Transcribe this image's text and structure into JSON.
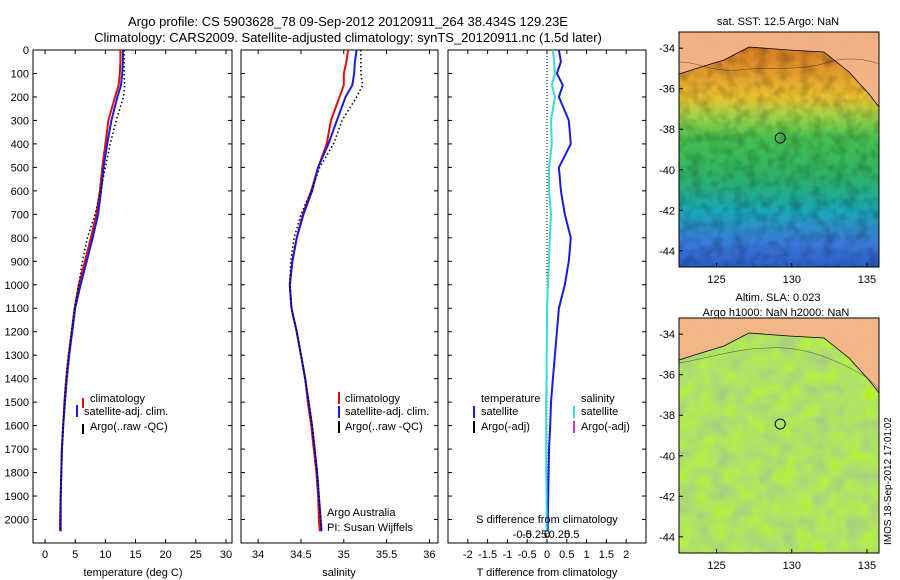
{
  "header": {
    "title_line1": "Argo profile: CS 5903628_78 09-Sep-2012 20120911_264 38.434S 129.23E",
    "title_line2": "Climatology: CARS2009. Satellite-adjusted climatology: synTS_20120911.nc (1.5d later)"
  },
  "footer_stamp": "IMOS 18-Sep-2012 17:01:02",
  "colors": {
    "climatology": "#dd1111",
    "satellite": "#1a1adf",
    "satellite_diff_s": "#33dddd",
    "argo": "#000000",
    "argo_adj_s": "#cc33cc",
    "land": "#f4b48a"
  },
  "chart_data": [
    {
      "type": "line",
      "xlabel": "temperature (deg C)",
      "ylabel": "",
      "xlim": [
        -2,
        31
      ],
      "ylim": [
        2100,
        0
      ],
      "xticks": [
        0,
        5,
        10,
        15,
        20,
        25,
        30
      ],
      "yticks": [
        0,
        100,
        200,
        300,
        400,
        500,
        600,
        700,
        800,
        900,
        1000,
        1100,
        1200,
        1300,
        1400,
        1500,
        1600,
        1700,
        1800,
        1900,
        2000
      ],
      "depth": [
        0,
        50,
        100,
        150,
        200,
        300,
        400,
        500,
        600,
        700,
        800,
        900,
        1000,
        1100,
        1200,
        1300,
        1400,
        1500,
        1600,
        1700,
        1800,
        1900,
        2000,
        2050
      ],
      "legend": [
        "climatology",
        "satellite-adj. clim.",
        "Argo(..raw -QC)"
      ],
      "series": [
        {
          "name": "climatology",
          "values": [
            12.5,
            12.5,
            12.4,
            12.2,
            11.6,
            10.5,
            10.0,
            9.5,
            9.1,
            8.5,
            7.6,
            6.6,
            5.6,
            4.9,
            4.4,
            3.9,
            3.5,
            3.2,
            3.0,
            2.8,
            2.7,
            2.6,
            2.5,
            2.5
          ]
        },
        {
          "name": "satellite-adj. clim.",
          "values": [
            12.9,
            12.9,
            12.8,
            12.6,
            12.0,
            11.0,
            10.3,
            9.7,
            9.3,
            8.8,
            7.9,
            6.9,
            5.9,
            5.0,
            4.5,
            4.0,
            3.6,
            3.3,
            3.0,
            2.8,
            2.7,
            2.6,
            2.6,
            2.6
          ]
        },
        {
          "name": "Argo(..raw -QC)",
          "values": [
            13.1,
            13.1,
            13.1,
            13.2,
            13.0,
            11.8,
            10.8,
            10.0,
            9.2,
            8.3,
            7.0,
            6.2,
            5.6,
            4.9,
            4.4,
            3.9,
            3.5,
            3.2,
            3.0,
            2.8,
            2.7,
            2.6,
            2.5,
            2.5
          ]
        }
      ]
    },
    {
      "type": "line",
      "xlabel": "salinity",
      "ylabel": "",
      "xlim": [
        33.8,
        36.1
      ],
      "ylim": [
        2100,
        0
      ],
      "xticks": [
        34,
        34.5,
        35,
        35.5,
        36
      ],
      "depth": [
        0,
        50,
        100,
        150,
        200,
        300,
        400,
        500,
        600,
        700,
        800,
        900,
        1000,
        1100,
        1200,
        1300,
        1400,
        1500,
        1600,
        1700,
        1800,
        1900,
        2000,
        2050
      ],
      "legend": [
        "climatology",
        "satellite-adj. clim.",
        "Argo(..raw -QC)"
      ],
      "series": [
        {
          "name": "climatology",
          "values": [
            35.05,
            35.03,
            35.0,
            35.0,
            34.95,
            34.85,
            34.8,
            34.7,
            34.62,
            34.52,
            34.45,
            34.4,
            34.37,
            34.39,
            34.45,
            34.5,
            34.55,
            34.58,
            34.62,
            34.65,
            34.68,
            34.7,
            34.71,
            34.72
          ]
        },
        {
          "name": "satellite-adj. clim.",
          "values": [
            35.15,
            35.13,
            35.12,
            35.1,
            35.02,
            34.92,
            34.82,
            34.7,
            34.63,
            34.53,
            34.45,
            34.4,
            34.37,
            34.39,
            34.45,
            34.5,
            34.55,
            34.59,
            34.63,
            34.66,
            34.69,
            34.71,
            34.73,
            34.74
          ]
        },
        {
          "name": "Argo(..raw -QC)",
          "values": [
            35.2,
            35.2,
            35.2,
            35.22,
            35.15,
            34.98,
            34.88,
            34.72,
            34.62,
            34.5,
            34.42,
            34.38,
            34.37,
            34.39,
            34.45,
            34.5,
            34.55,
            34.59,
            34.63,
            34.66,
            34.69,
            34.71,
            34.73,
            34.74
          ]
        }
      ],
      "annotation": [
        "Argo Australia",
        "PI: Susan Wijffels"
      ]
    },
    {
      "type": "line",
      "xlabel": "T difference from climatology",
      "xlabel_top": "S difference from climatology",
      "ylabel": "",
      "xlim": [
        -2.5,
        2.5
      ],
      "ylim": [
        2100,
        0
      ],
      "xticks": [
        -2,
        -1.5,
        -1,
        -0.5,
        0,
        0.5,
        1,
        1.5,
        2
      ],
      "xticklabels": [
        "-2",
        "-1.5",
        "-1",
        "-0.5",
        "0",
        "0.5",
        "1",
        "1.5",
        "2"
      ],
      "xticks_s": [
        -0.5,
        -0.25,
        0,
        0.25,
        0.5
      ],
      "xticklabels_s": [
        "-0.5",
        "-0.25",
        "0",
        "0.25",
        "0.5"
      ],
      "depth": [
        0,
        50,
        100,
        150,
        200,
        300,
        400,
        500,
        600,
        700,
        800,
        900,
        1000,
        1100,
        1200,
        1300,
        1400,
        1500,
        1600,
        1700,
        1800,
        1900,
        2000,
        2050
      ],
      "legend_titles": [
        "temperature",
        "salinity"
      ],
      "legend": [
        "satellite",
        "Argo(-adj)",
        "satellite",
        "Argo(-adj)"
      ],
      "series": [
        {
          "name": "temperature satellite",
          "values": [
            0.3,
            0.35,
            0.25,
            0.4,
            0.3,
            0.55,
            0.6,
            0.3,
            0.35,
            0.45,
            0.6,
            0.55,
            0.45,
            0.3,
            0.25,
            0.2,
            0.15,
            0.1,
            0.08,
            0.05,
            0.04,
            0.03,
            0.02,
            0.02
          ]
        },
        {
          "name": "salinity satellite",
          "values": [
            0.15,
            0.18,
            0.2,
            0.12,
            0.2,
            0.1,
            0.12,
            0.05,
            0.05,
            0.1,
            0.07,
            0.05,
            0.02,
            0.0,
            0.0,
            -0.01,
            -0.01,
            -0.02,
            -0.02,
            -0.02,
            -0.02,
            -0.01,
            -0.01,
            -0.01
          ]
        }
      ]
    }
  ],
  "maps": [
    {
      "title": "sat. SST: 12.5 Argo: NaN",
      "title_line2": "",
      "kind": "sst",
      "xlim": [
        122.5,
        135.8
      ],
      "ylim": [
        -44.8,
        -33.2
      ],
      "xticks": [
        125,
        130,
        135
      ],
      "yticks": [
        -34,
        -36,
        -38,
        -40,
        -42,
        -44
      ],
      "float_lon": 129.23,
      "float_lat": -38.434
    },
    {
      "title": "Altim. SLA: 0.023",
      "title_line2": "Argo h1000: NaN h2000: NaN",
      "kind": "sla",
      "xlim": [
        122.5,
        135.8
      ],
      "ylim": [
        -44.8,
        -33.2
      ],
      "xticks": [
        125,
        130,
        135
      ],
      "yticks": [
        -34,
        -36,
        -38,
        -40,
        -42,
        -44
      ],
      "float_lon": 129.23,
      "float_lat": -38.434
    }
  ]
}
